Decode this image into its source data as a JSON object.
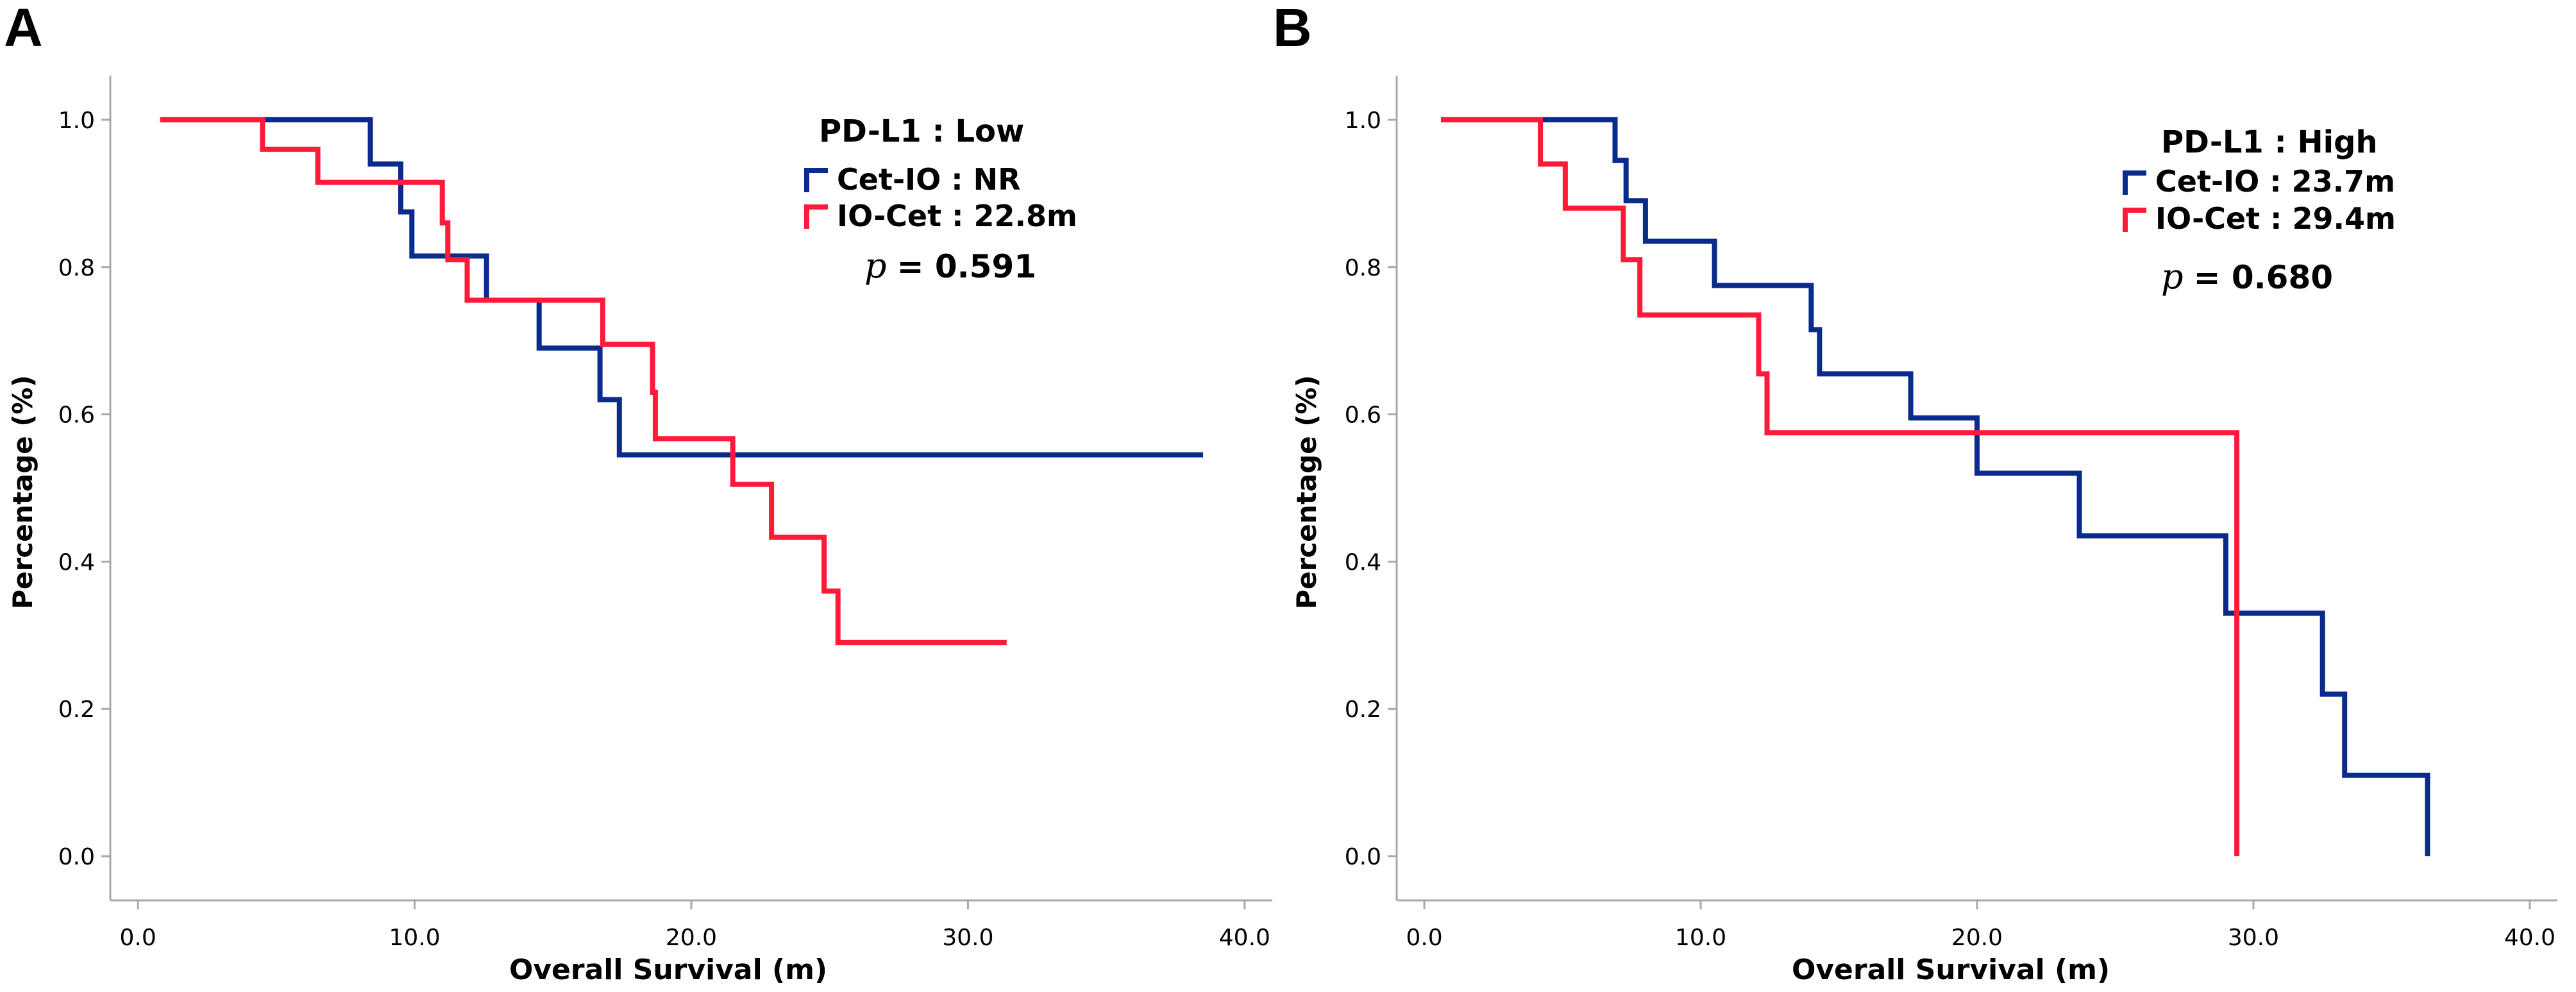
{
  "colors": {
    "blue": "#0a2a8c",
    "red": "#ff1a3a"
  },
  "chart_data": [
    {
      "panel": "A",
      "type": "line",
      "subtype": "kaplan-meier",
      "title": "PD-L1 : Low",
      "xlabel": "Overall Survival (m)",
      "ylabel": "Percentage (%)",
      "xlim": [
        -1,
        41
      ],
      "ylim": [
        -0.06,
        1.06
      ],
      "xticks": [
        0,
        10,
        20,
        30,
        40
      ],
      "xtick_labels": [
        "0.0",
        "10.0",
        "20.0",
        "30.0",
        "40.0"
      ],
      "yticks": [
        0,
        0.2,
        0.4,
        0.6,
        0.8,
        1.0
      ],
      "ytick_labels": [
        "0.0",
        "0.2",
        "0.4",
        "0.6",
        "0.8",
        "1.0"
      ],
      "p_prefix": "p",
      "p_value": "= 0.591",
      "series": [
        {
          "name": "Cet-IO : NR",
          "color": "#0a2a8c",
          "steps": [
            [
              0.8,
              1.0
            ],
            [
              8.4,
              1.0
            ],
            [
              8.4,
              0.94
            ],
            [
              9.5,
              0.94
            ],
            [
              9.5,
              0.875
            ],
            [
              9.9,
              0.875
            ],
            [
              9.9,
              0.815
            ],
            [
              12.6,
              0.815
            ],
            [
              12.6,
              0.755
            ],
            [
              14.5,
              0.755
            ],
            [
              14.5,
              0.69
            ],
            [
              16.7,
              0.69
            ],
            [
              16.7,
              0.62
            ],
            [
              17.4,
              0.62
            ],
            [
              17.4,
              0.545
            ],
            [
              38.5,
              0.545
            ]
          ]
        },
        {
          "name": "IO-Cet : 22.8m",
          "color": "#ff1a3a",
          "steps": [
            [
              0.8,
              1.0
            ],
            [
              4.5,
              1.0
            ],
            [
              4.5,
              0.96
            ],
            [
              6.5,
              0.96
            ],
            [
              6.5,
              0.915
            ],
            [
              11.0,
              0.915
            ],
            [
              11.0,
              0.86
            ],
            [
              11.2,
              0.86
            ],
            [
              11.2,
              0.81
            ],
            [
              11.9,
              0.81
            ],
            [
              11.9,
              0.755
            ],
            [
              16.8,
              0.755
            ],
            [
              16.8,
              0.695
            ],
            [
              18.6,
              0.695
            ],
            [
              18.6,
              0.63
            ],
            [
              18.7,
              0.63
            ],
            [
              18.7,
              0.567
            ],
            [
              21.5,
              0.567
            ],
            [
              21.5,
              0.505
            ],
            [
              22.9,
              0.505
            ],
            [
              22.9,
              0.433
            ],
            [
              24.8,
              0.433
            ],
            [
              24.8,
              0.36
            ],
            [
              25.3,
              0.36
            ],
            [
              25.3,
              0.29
            ],
            [
              31.4,
              0.29
            ]
          ]
        }
      ]
    },
    {
      "panel": "B",
      "type": "line",
      "subtype": "kaplan-meier",
      "title": "PD-L1 : High",
      "xlabel": "Overall Survival (m)",
      "ylabel": "Percentage (%)",
      "xlim": [
        -1,
        41
      ],
      "ylim": [
        -0.06,
        1.06
      ],
      "xticks": [
        0,
        10,
        20,
        30,
        40
      ],
      "xtick_labels": [
        "0.0",
        "10.0",
        "20.0",
        "30.0",
        "40.0"
      ],
      "yticks": [
        0,
        0.2,
        0.4,
        0.6,
        0.8,
        1.0
      ],
      "ytick_labels": [
        "0.0",
        "0.2",
        "0.4",
        "0.6",
        "0.8",
        "1.0"
      ],
      "p_prefix": "p",
      "p_value": "= 0.680",
      "series": [
        {
          "name": "Cet-IO : 23.7m",
          "color": "#0a2a8c",
          "steps": [
            [
              0.6,
              1.0
            ],
            [
              6.9,
              1.0
            ],
            [
              6.9,
              0.945
            ],
            [
              7.3,
              0.945
            ],
            [
              7.3,
              0.89
            ],
            [
              8.0,
              0.89
            ],
            [
              8.0,
              0.835
            ],
            [
              10.5,
              0.835
            ],
            [
              10.5,
              0.775
            ],
            [
              14.0,
              0.775
            ],
            [
              14.0,
              0.715
            ],
            [
              14.3,
              0.715
            ],
            [
              14.3,
              0.655
            ],
            [
              17.6,
              0.655
            ],
            [
              17.6,
              0.595
            ],
            [
              20.0,
              0.595
            ],
            [
              20.0,
              0.52
            ],
            [
              23.7,
              0.52
            ],
            [
              23.7,
              0.435
            ],
            [
              29.0,
              0.435
            ],
            [
              29.0,
              0.33
            ],
            [
              32.5,
              0.33
            ],
            [
              32.5,
              0.22
            ],
            [
              33.3,
              0.22
            ],
            [
              33.3,
              0.11
            ],
            [
              36.3,
              0.11
            ],
            [
              36.3,
              0.0
            ]
          ]
        },
        {
          "name": "IO-Cet : 29.4m",
          "color": "#ff1a3a",
          "steps": [
            [
              0.6,
              1.0
            ],
            [
              4.2,
              1.0
            ],
            [
              4.2,
              0.94
            ],
            [
              5.1,
              0.94
            ],
            [
              5.1,
              0.88
            ],
            [
              7.2,
              0.88
            ],
            [
              7.2,
              0.81
            ],
            [
              7.8,
              0.81
            ],
            [
              7.8,
              0.735
            ],
            [
              12.1,
              0.735
            ],
            [
              12.1,
              0.655
            ],
            [
              12.4,
              0.655
            ],
            [
              12.4,
              0.575
            ],
            [
              29.4,
              0.575
            ],
            [
              29.4,
              0.0
            ]
          ]
        }
      ]
    }
  ]
}
